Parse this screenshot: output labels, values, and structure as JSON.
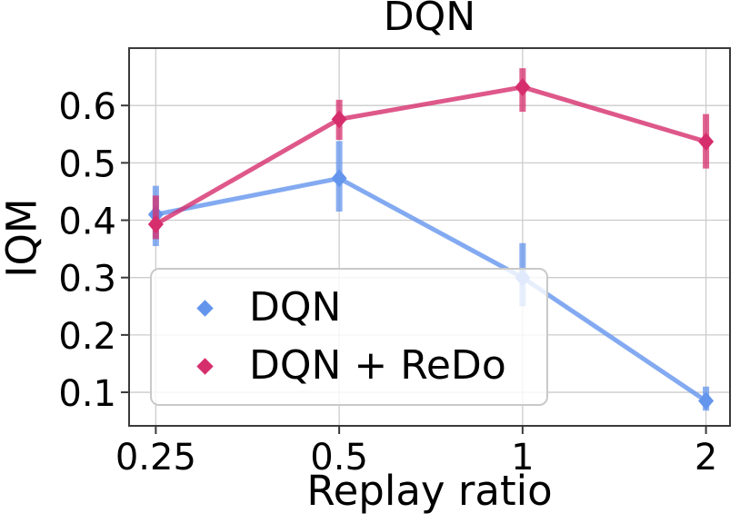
{
  "figure": {
    "title": "DQN",
    "xlabel": "Replay ratio",
    "ylabel": "IQM"
  },
  "legend": {
    "items": [
      {
        "label": "DQN",
        "color": "#6495ED"
      },
      {
        "label": "DQN + ReDo",
        "color": "#D62E6D"
      }
    ]
  },
  "chart_data": {
    "type": "line",
    "title": "DQN",
    "xlabel": "Replay ratio",
    "ylabel": "IQM",
    "x_scale": "log2",
    "x": [
      0.25,
      0.5,
      1,
      2
    ],
    "x_tick_labels": [
      "0.25",
      "0.5",
      "1",
      "2"
    ],
    "y_ticks": [
      0.1,
      0.2,
      0.3,
      0.4,
      0.5,
      0.6
    ],
    "y_tick_labels": [
      "0.1",
      "0.2",
      "0.3",
      "0.4",
      "0.5",
      "0.6"
    ],
    "xlim": [
      0.226,
      2.19
    ],
    "ylim": [
      0.0415,
      0.7
    ],
    "grid": true,
    "legend_position": "lower left",
    "series": [
      {
        "name": "DQN",
        "color": "#6495ED",
        "marker": "diamond",
        "values": [
          0.41,
          0.473,
          0.3,
          0.085
        ],
        "err_low": [
          0.355,
          0.415,
          0.25,
          0.068
        ],
        "err_high": [
          0.46,
          0.538,
          0.36,
          0.11
        ]
      },
      {
        "name": "DQN + ReDo",
        "color": "#D62E6D",
        "marker": "diamond",
        "values": [
          0.393,
          0.576,
          0.632,
          0.537
        ],
        "err_low": [
          0.367,
          0.54,
          0.589,
          0.49
        ],
        "err_high": [
          0.443,
          0.61,
          0.665,
          0.585
        ]
      }
    ],
    "colors": {
      "grid": "#cccccc",
      "spine": "#3a3a3a",
      "text": "#000000"
    }
  }
}
